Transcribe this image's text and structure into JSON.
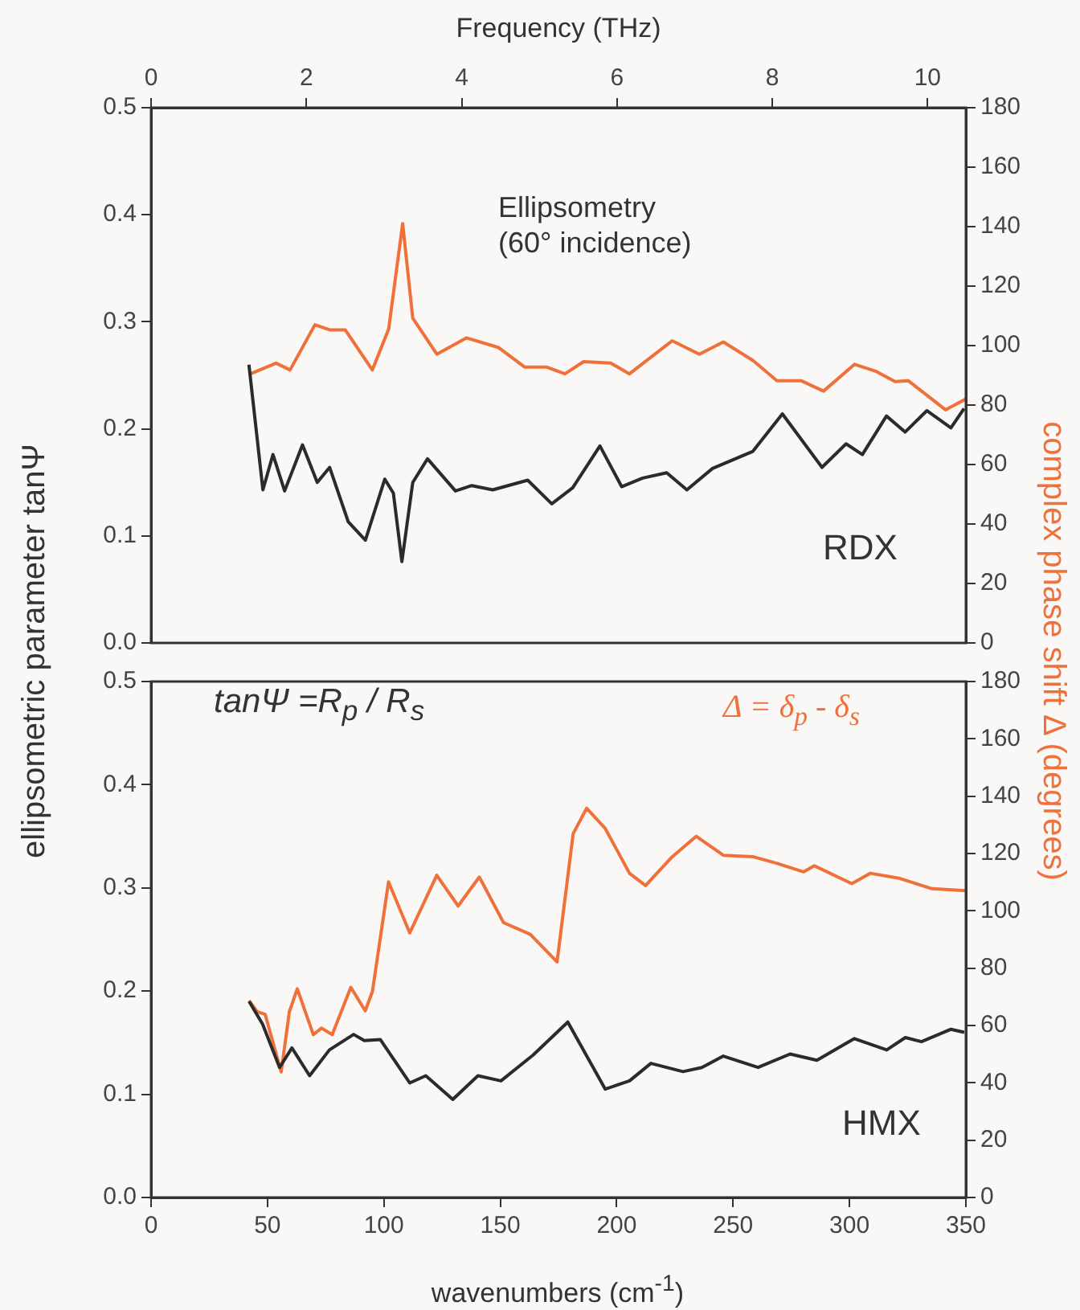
{
  "chart_data": [
    {
      "type": "line",
      "xlabel": "Frequency (THz)",
      "ylabel": "ellipsometric parameter tanΨ",
      "y2label": "complex phase shift Δ (degrees)",
      "xlim": [
        0,
        10.493
      ],
      "xticks": [
        0,
        2,
        4,
        6,
        8,
        10
      ],
      "ylim": [
        0,
        0.5
      ],
      "yticks": [
        {
          "value": 0,
          "label": "0.0"
        },
        0.1,
        0.2,
        0.3,
        0.4,
        0.5
      ],
      "y2lim": [
        0,
        180
      ],
      "y2ticks": [
        0,
        20,
        40,
        60,
        80,
        100,
        120,
        140,
        160,
        180
      ],
      "grid": false,
      "legend": false,
      "marker": "none",
      "line_style": "solid",
      "annotations": [
        "Ellipsometry\n(60° incidence)",
        "RDX"
      ],
      "series": [
        {
          "color": "#2b2b2b",
          "x": [
            1.26,
            1.44,
            1.57,
            1.72,
            1.95,
            2.14,
            2.3,
            2.54,
            2.76,
            3.01,
            3.12,
            3.23,
            3.37,
            3.56,
            3.92,
            4.13,
            4.4,
            4.85,
            5.16,
            5.43,
            5.78,
            6.06,
            6.33,
            6.64,
            6.9,
            7.23,
            7.75,
            8.13,
            8.64,
            8.95,
            9.16,
            9.47,
            9.71,
            9.99,
            10.3,
            10.47
          ],
          "values": [
            0.26,
            0.143,
            0.176,
            0.142,
            0.185,
            0.15,
            0.164,
            0.113,
            0.096,
            0.153,
            0.14,
            0.076,
            0.15,
            0.172,
            0.142,
            0.147,
            0.143,
            0.152,
            0.13,
            0.145,
            0.184,
            0.146,
            0.154,
            0.159,
            0.143,
            0.163,
            0.179,
            0.214,
            0.164,
            0.186,
            0.176,
            0.212,
            0.197,
            0.217,
            0.201,
            0.219
          ]
        },
        {
          "color": "#f0703a",
          "axis": "y2",
          "x": [
            1.28,
            1.61,
            1.79,
            2.11,
            2.3,
            2.5,
            2.85,
            3.06,
            3.24,
            3.37,
            3.68,
            4.06,
            4.47,
            4.81,
            5.09,
            5.33,
            5.57,
            5.92,
            6.16,
            6.71,
            7.06,
            7.37,
            7.75,
            8.06,
            8.37,
            8.66,
            9.06,
            9.33,
            9.58,
            9.75,
            10.23,
            10.49
          ],
          "values": [
            90.5,
            94.1,
            91.8,
            107,
            105.3,
            105.3,
            91.8,
            105.6,
            141,
            109.2,
            97.1,
            102.6,
            99.4,
            92.8,
            92.8,
            90.5,
            94.6,
            94.1,
            90.5,
            101.6,
            97.1,
            101.2,
            95,
            88.2,
            88.2,
            84.7,
            93.7,
            91.4,
            87.9,
            88.2,
            78.4,
            82
          ]
        }
      ]
    },
    {
      "type": "line",
      "xlabel": "wavenumbers (cm$^{-1}$)",
      "xlim": [
        0,
        350
      ],
      "xticks": [
        0,
        50,
        100,
        150,
        200,
        250,
        300,
        350
      ],
      "ylim": [
        0,
        0.5
      ],
      "yticks": [
        {
          "value": 0,
          "label": "0.0"
        },
        0.1,
        0.2,
        0.3,
        0.4,
        0.5
      ],
      "y2lim": [
        0,
        180
      ],
      "y2ticks": [
        0,
        20,
        40,
        60,
        80,
        100,
        120,
        140,
        160,
        180
      ],
      "grid": false,
      "legend": false,
      "marker": "none",
      "line_style": "solid",
      "annotations": [
        "tanΨ =R$_{p}$ / R$_{s}$",
        "Δ = δ$_{p}$ - δ$_{s}$",
        "HMX"
      ],
      "series": [
        {
          "color": "#2b2b2b",
          "x": [
            42.1,
            47.9,
            55.2,
            60.5,
            68.1,
            76.6,
            87.0,
            91.6,
            98.5,
            111.1,
            118.0,
            129.6,
            140.4,
            150.3,
            164.1,
            179.0,
            195.1,
            205.5,
            214.7,
            228.5,
            236.6,
            245.8,
            260.7,
            274.5,
            286.0,
            302.1,
            316.0,
            324.0,
            330.9,
            343.6,
            349.3
          ],
          "values": [
            0.19,
            0.168,
            0.126,
            0.145,
            0.118,
            0.143,
            0.158,
            0.152,
            0.153,
            0.111,
            0.118,
            0.095,
            0.118,
            0.113,
            0.138,
            0.17,
            0.105,
            0.113,
            0.13,
            0.122,
            0.126,
            0.137,
            0.126,
            0.139,
            0.133,
            0.154,
            0.143,
            0.155,
            0.151,
            0.163,
            0.16
          ]
        },
        {
          "color": "#f0703a",
          "axis": "y2",
          "x": [
            42.1,
            45.6,
            49.0,
            55.9,
            59.4,
            62.8,
            69.7,
            73.2,
            77.8,
            85.8,
            92.0,
            95.1,
            102.0,
            111.1,
            122.7,
            131.9,
            141.0,
            151.4,
            162.9,
            174.4,
            181.3,
            187.1,
            195.1,
            205.5,
            212.4,
            223.9,
            234.2,
            245.8,
            258.4,
            268.7,
            280.3,
            284.9,
            301.0,
            309.0,
            321.7,
            335.5,
            350
          ],
          "values": [
            68.7,
            64.8,
            63.9,
            43.8,
            64.8,
            72.8,
            56.8,
            59.1,
            56.8,
            73.3,
            65.1,
            71.9,
            110.1,
            92.3,
            112.4,
            101.7,
            111.8,
            95.9,
            91.8,
            82.2,
            126.9,
            135.8,
            128.7,
            113.1,
            108.8,
            118.9,
            126,
            119.4,
            118.9,
            116.6,
            113.6,
            115.7,
            109.5,
            113.1,
            111.3,
            107.7,
            107
          ]
        }
      ]
    }
  ]
}
